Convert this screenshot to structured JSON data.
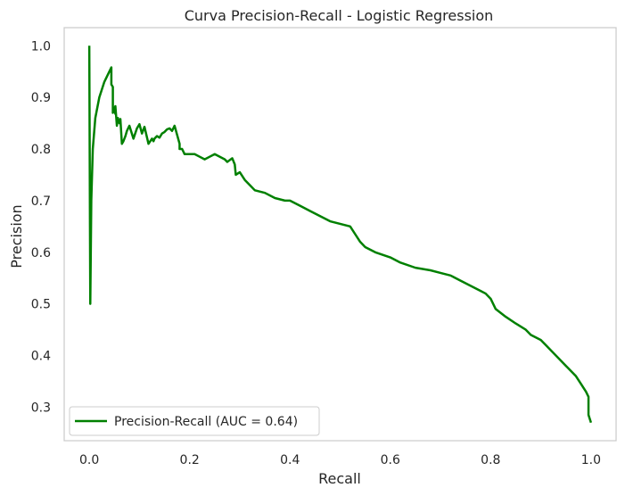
{
  "chart_data": {
    "type": "line",
    "title": "Curva Precision-Recall - Logistic Regression",
    "xlabel": "Recall",
    "ylabel": "Precision",
    "xlim": [
      -0.05,
      1.05
    ],
    "ylim": [
      0.235,
      1.035
    ],
    "xticks": [
      0.0,
      0.2,
      0.4,
      0.6,
      0.8,
      1.0
    ],
    "xtick_labels": [
      "0.0",
      "0.2",
      "0.4",
      "0.6",
      "0.8",
      "1.0"
    ],
    "yticks": [
      0.3,
      0.4,
      0.5,
      0.6,
      0.7,
      0.8,
      0.9,
      1.0
    ],
    "ytick_labels": [
      "0.3",
      "0.4",
      "0.5",
      "0.6",
      "0.7",
      "0.8",
      "0.9",
      "1.0"
    ],
    "grid": false,
    "legend_position": "lower-left",
    "series": [
      {
        "name": "Precision-Recall (AUC = 0.64)",
        "color": "#008000",
        "x": [
          0.0,
          0.002,
          0.002,
          0.004,
          0.007,
          0.012,
          0.02,
          0.03,
          0.04,
          0.044,
          0.044,
          0.047,
          0.047,
          0.05,
          0.052,
          0.052,
          0.055,
          0.057,
          0.06,
          0.062,
          0.065,
          0.068,
          0.07,
          0.072,
          0.075,
          0.08,
          0.088,
          0.095,
          0.1,
          0.105,
          0.11,
          0.118,
          0.125,
          0.128,
          0.13,
          0.135,
          0.14,
          0.145,
          0.15,
          0.155,
          0.16,
          0.165,
          0.17,
          0.18,
          0.18,
          0.185,
          0.19,
          0.195,
          0.2,
          0.21,
          0.22,
          0.23,
          0.24,
          0.25,
          0.27,
          0.275,
          0.285,
          0.29,
          0.292,
          0.3,
          0.31,
          0.32,
          0.33,
          0.35,
          0.37,
          0.39,
          0.4,
          0.42,
          0.44,
          0.46,
          0.48,
          0.5,
          0.52,
          0.53,
          0.54,
          0.55,
          0.57,
          0.6,
          0.62,
          0.65,
          0.68,
          0.7,
          0.72,
          0.74,
          0.76,
          0.78,
          0.79,
          0.8,
          0.81,
          0.83,
          0.85,
          0.87,
          0.88,
          0.9,
          0.91,
          0.93,
          0.95,
          0.97,
          0.98,
          0.99,
          0.995,
          0.995,
          1.0
        ],
        "y": [
          1.0,
          0.5,
          0.5,
          0.7,
          0.8,
          0.86,
          0.9,
          0.93,
          0.95,
          0.958,
          0.925,
          0.92,
          0.87,
          0.88,
          0.868,
          0.883,
          0.845,
          0.86,
          0.85,
          0.858,
          0.81,
          0.815,
          0.82,
          0.825,
          0.835,
          0.845,
          0.82,
          0.84,
          0.848,
          0.83,
          0.843,
          0.81,
          0.82,
          0.815,
          0.82,
          0.825,
          0.822,
          0.83,
          0.833,
          0.838,
          0.84,
          0.835,
          0.845,
          0.81,
          0.8,
          0.8,
          0.79,
          0.79,
          0.79,
          0.79,
          0.785,
          0.78,
          0.785,
          0.79,
          0.78,
          0.775,
          0.782,
          0.77,
          0.75,
          0.755,
          0.74,
          0.73,
          0.72,
          0.715,
          0.705,
          0.7,
          0.7,
          0.69,
          0.68,
          0.67,
          0.66,
          0.655,
          0.65,
          0.635,
          0.62,
          0.61,
          0.6,
          0.59,
          0.58,
          0.57,
          0.565,
          0.56,
          0.555,
          0.545,
          0.535,
          0.525,
          0.52,
          0.51,
          0.49,
          0.475,
          0.462,
          0.45,
          0.44,
          0.43,
          0.42,
          0.4,
          0.38,
          0.36,
          0.345,
          0.33,
          0.32,
          0.285,
          0.27
        ]
      }
    ]
  }
}
